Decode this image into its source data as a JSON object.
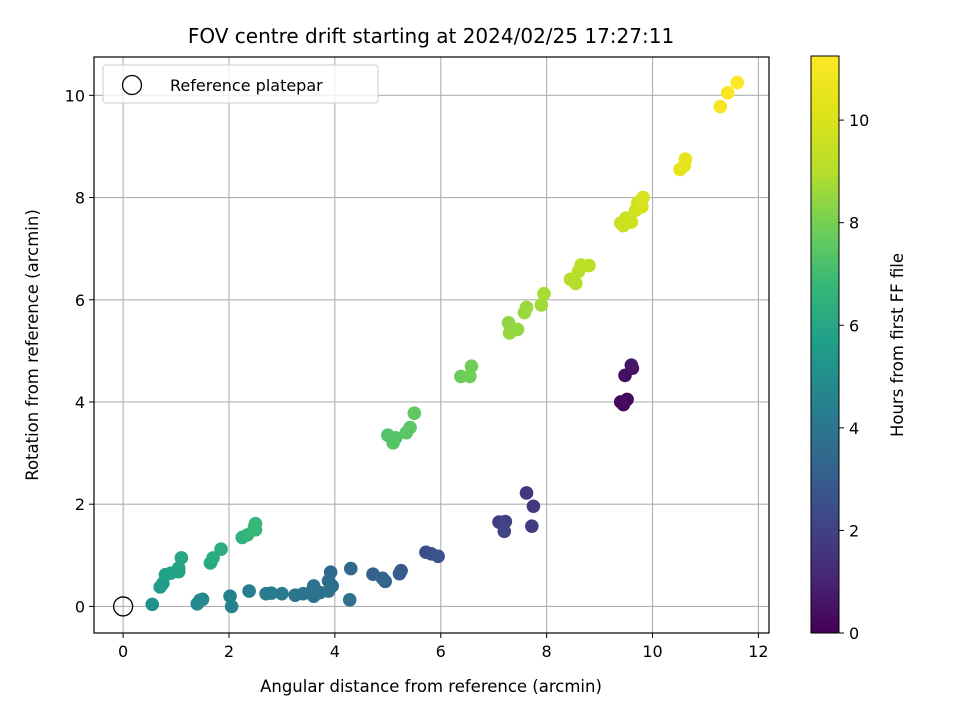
{
  "chart_data": {
    "type": "scatter",
    "title": "FOV centre drift starting at 2024/02/25 17:27:11",
    "xlabel": "Angular distance from reference (arcmin)",
    "ylabel": "Rotation from reference (arcmin)",
    "xlim": [
      -0.55,
      12.2
    ],
    "ylim": [
      -0.52,
      10.75
    ],
    "xticks": [
      0,
      2,
      4,
      6,
      8,
      10,
      12
    ],
    "yticks": [
      0,
      2,
      4,
      6,
      8,
      10
    ],
    "grid": true,
    "colormap": "viridis",
    "colorbar": {
      "label": "Hours from first FF file",
      "range": [
        0,
        11.25
      ],
      "ticks": [
        0,
        2,
        4,
        6,
        8,
        10
      ]
    },
    "legend": {
      "position": "top-left",
      "entries": [
        {
          "label": "Reference platepar",
          "marker": "open-circle"
        }
      ]
    },
    "reference_point": {
      "x": 0,
      "y": 0
    },
    "points": [
      {
        "x": 9.45,
        "y": 3.95,
        "h": 0.1
      },
      {
        "x": 9.4,
        "y": 4.0,
        "h": 0.2
      },
      {
        "x": 9.52,
        "y": 4.05,
        "h": 0.3
      },
      {
        "x": 9.48,
        "y": 4.52,
        "h": 0.4
      },
      {
        "x": 9.62,
        "y": 4.66,
        "h": 0.5
      },
      {
        "x": 9.6,
        "y": 4.72,
        "h": 0.6
      },
      {
        "x": 7.62,
        "y": 2.22,
        "h": 1.6
      },
      {
        "x": 7.75,
        "y": 1.96,
        "h": 1.7
      },
      {
        "x": 7.72,
        "y": 1.57,
        "h": 1.8
      },
      {
        "x": 7.1,
        "y": 1.65,
        "h": 1.9
      },
      {
        "x": 7.22,
        "y": 1.66,
        "h": 2.0
      },
      {
        "x": 7.2,
        "y": 1.47,
        "h": 2.1
      },
      {
        "x": 5.72,
        "y": 1.06,
        "h": 2.4
      },
      {
        "x": 5.82,
        "y": 1.03,
        "h": 2.5
      },
      {
        "x": 5.95,
        "y": 0.98,
        "h": 2.6
      },
      {
        "x": 5.25,
        "y": 0.7,
        "h": 2.8
      },
      {
        "x": 5.22,
        "y": 0.64,
        "h": 2.9
      },
      {
        "x": 4.72,
        "y": 0.63,
        "h": 3.1
      },
      {
        "x": 4.95,
        "y": 0.49,
        "h": 3.2
      },
      {
        "x": 4.9,
        "y": 0.55,
        "h": 3.3
      },
      {
        "x": 4.3,
        "y": 0.74,
        "h": 3.4
      },
      {
        "x": 3.92,
        "y": 0.67,
        "h": 3.5
      },
      {
        "x": 3.95,
        "y": 0.4,
        "h": 3.6
      },
      {
        "x": 3.88,
        "y": 0.5,
        "h": 3.6
      },
      {
        "x": 4.28,
        "y": 0.13,
        "h": 3.7
      },
      {
        "x": 3.88,
        "y": 0.3,
        "h": 3.7
      },
      {
        "x": 3.72,
        "y": 0.27,
        "h": 3.8
      },
      {
        "x": 3.6,
        "y": 0.4,
        "h": 3.8
      },
      {
        "x": 3.55,
        "y": 0.28,
        "h": 3.9
      },
      {
        "x": 3.6,
        "y": 0.2,
        "h": 3.9
      },
      {
        "x": 3.4,
        "y": 0.25,
        "h": 4.0
      },
      {
        "x": 3.25,
        "y": 0.22,
        "h": 4.0
      },
      {
        "x": 3.0,
        "y": 0.25,
        "h": 4.1
      },
      {
        "x": 2.8,
        "y": 0.26,
        "h": 4.2
      },
      {
        "x": 2.7,
        "y": 0.25,
        "h": 4.2
      },
      {
        "x": 2.38,
        "y": 0.3,
        "h": 4.3
      },
      {
        "x": 2.02,
        "y": 0.2,
        "h": 4.4
      },
      {
        "x": 2.05,
        "y": 0.0,
        "h": 4.5
      },
      {
        "x": 1.5,
        "y": 0.14,
        "h": 4.7
      },
      {
        "x": 1.45,
        "y": 0.12,
        "h": 4.8
      },
      {
        "x": 1.4,
        "y": 0.05,
        "h": 4.8
      },
      {
        "x": 0.55,
        "y": 0.04,
        "h": 5.1
      },
      {
        "x": 0.7,
        "y": 0.38,
        "h": 5.5
      },
      {
        "x": 0.75,
        "y": 0.45,
        "h": 5.6
      },
      {
        "x": 0.8,
        "y": 0.62,
        "h": 5.7
      },
      {
        "x": 0.9,
        "y": 0.65,
        "h": 5.8
      },
      {
        "x": 1.05,
        "y": 0.68,
        "h": 5.8
      },
      {
        "x": 1.05,
        "y": 0.75,
        "h": 5.9
      },
      {
        "x": 1.1,
        "y": 0.95,
        "h": 6.0
      },
      {
        "x": 1.65,
        "y": 0.85,
        "h": 6.1
      },
      {
        "x": 1.7,
        "y": 0.95,
        "h": 6.2
      },
      {
        "x": 1.85,
        "y": 1.12,
        "h": 6.3
      },
      {
        "x": 2.25,
        "y": 1.35,
        "h": 6.5
      },
      {
        "x": 2.35,
        "y": 1.4,
        "h": 6.6
      },
      {
        "x": 2.5,
        "y": 1.5,
        "h": 6.7
      },
      {
        "x": 2.5,
        "y": 1.62,
        "h": 6.8
      },
      {
        "x": 2.48,
        "y": 1.55,
        "h": 6.8
      },
      {
        "x": 5.0,
        "y": 3.35,
        "h": 7.3
      },
      {
        "x": 5.1,
        "y": 3.2,
        "h": 7.4
      },
      {
        "x": 5.15,
        "y": 3.3,
        "h": 7.4
      },
      {
        "x": 5.35,
        "y": 3.4,
        "h": 7.5
      },
      {
        "x": 5.42,
        "y": 3.5,
        "h": 7.5
      },
      {
        "x": 5.5,
        "y": 3.78,
        "h": 7.6
      },
      {
        "x": 6.38,
        "y": 4.5,
        "h": 7.8
      },
      {
        "x": 6.55,
        "y": 4.5,
        "h": 7.9
      },
      {
        "x": 6.58,
        "y": 4.7,
        "h": 7.9
      },
      {
        "x": 7.28,
        "y": 5.55,
        "h": 8.4
      },
      {
        "x": 7.3,
        "y": 5.35,
        "h": 8.5
      },
      {
        "x": 7.45,
        "y": 5.42,
        "h": 8.5
      },
      {
        "x": 7.58,
        "y": 5.75,
        "h": 8.6
      },
      {
        "x": 7.62,
        "y": 5.85,
        "h": 8.6
      },
      {
        "x": 7.9,
        "y": 5.9,
        "h": 8.7
      },
      {
        "x": 7.95,
        "y": 6.12,
        "h": 8.8
      },
      {
        "x": 8.45,
        "y": 6.4,
        "h": 9.0
      },
      {
        "x": 8.55,
        "y": 6.32,
        "h": 9.0
      },
      {
        "x": 8.6,
        "y": 6.55,
        "h": 9.1
      },
      {
        "x": 8.65,
        "y": 6.68,
        "h": 9.2
      },
      {
        "x": 8.8,
        "y": 6.67,
        "h": 9.2
      },
      {
        "x": 9.4,
        "y": 7.5,
        "h": 9.5
      },
      {
        "x": 9.45,
        "y": 7.45,
        "h": 9.6
      },
      {
        "x": 9.5,
        "y": 7.6,
        "h": 9.6
      },
      {
        "x": 9.6,
        "y": 7.52,
        "h": 9.7
      },
      {
        "x": 9.68,
        "y": 7.75,
        "h": 9.8
      },
      {
        "x": 9.72,
        "y": 7.9,
        "h": 9.8
      },
      {
        "x": 9.8,
        "y": 7.82,
        "h": 9.9
      },
      {
        "x": 9.82,
        "y": 8.0,
        "h": 9.9
      },
      {
        "x": 10.52,
        "y": 8.55,
        "h": 10.4
      },
      {
        "x": 10.6,
        "y": 8.62,
        "h": 10.5
      },
      {
        "x": 10.62,
        "y": 8.75,
        "h": 10.5
      },
      {
        "x": 11.28,
        "y": 9.78,
        "h": 11.0
      },
      {
        "x": 11.42,
        "y": 10.05,
        "h": 11.1
      },
      {
        "x": 11.6,
        "y": 10.25,
        "h": 11.2
      }
    ]
  }
}
